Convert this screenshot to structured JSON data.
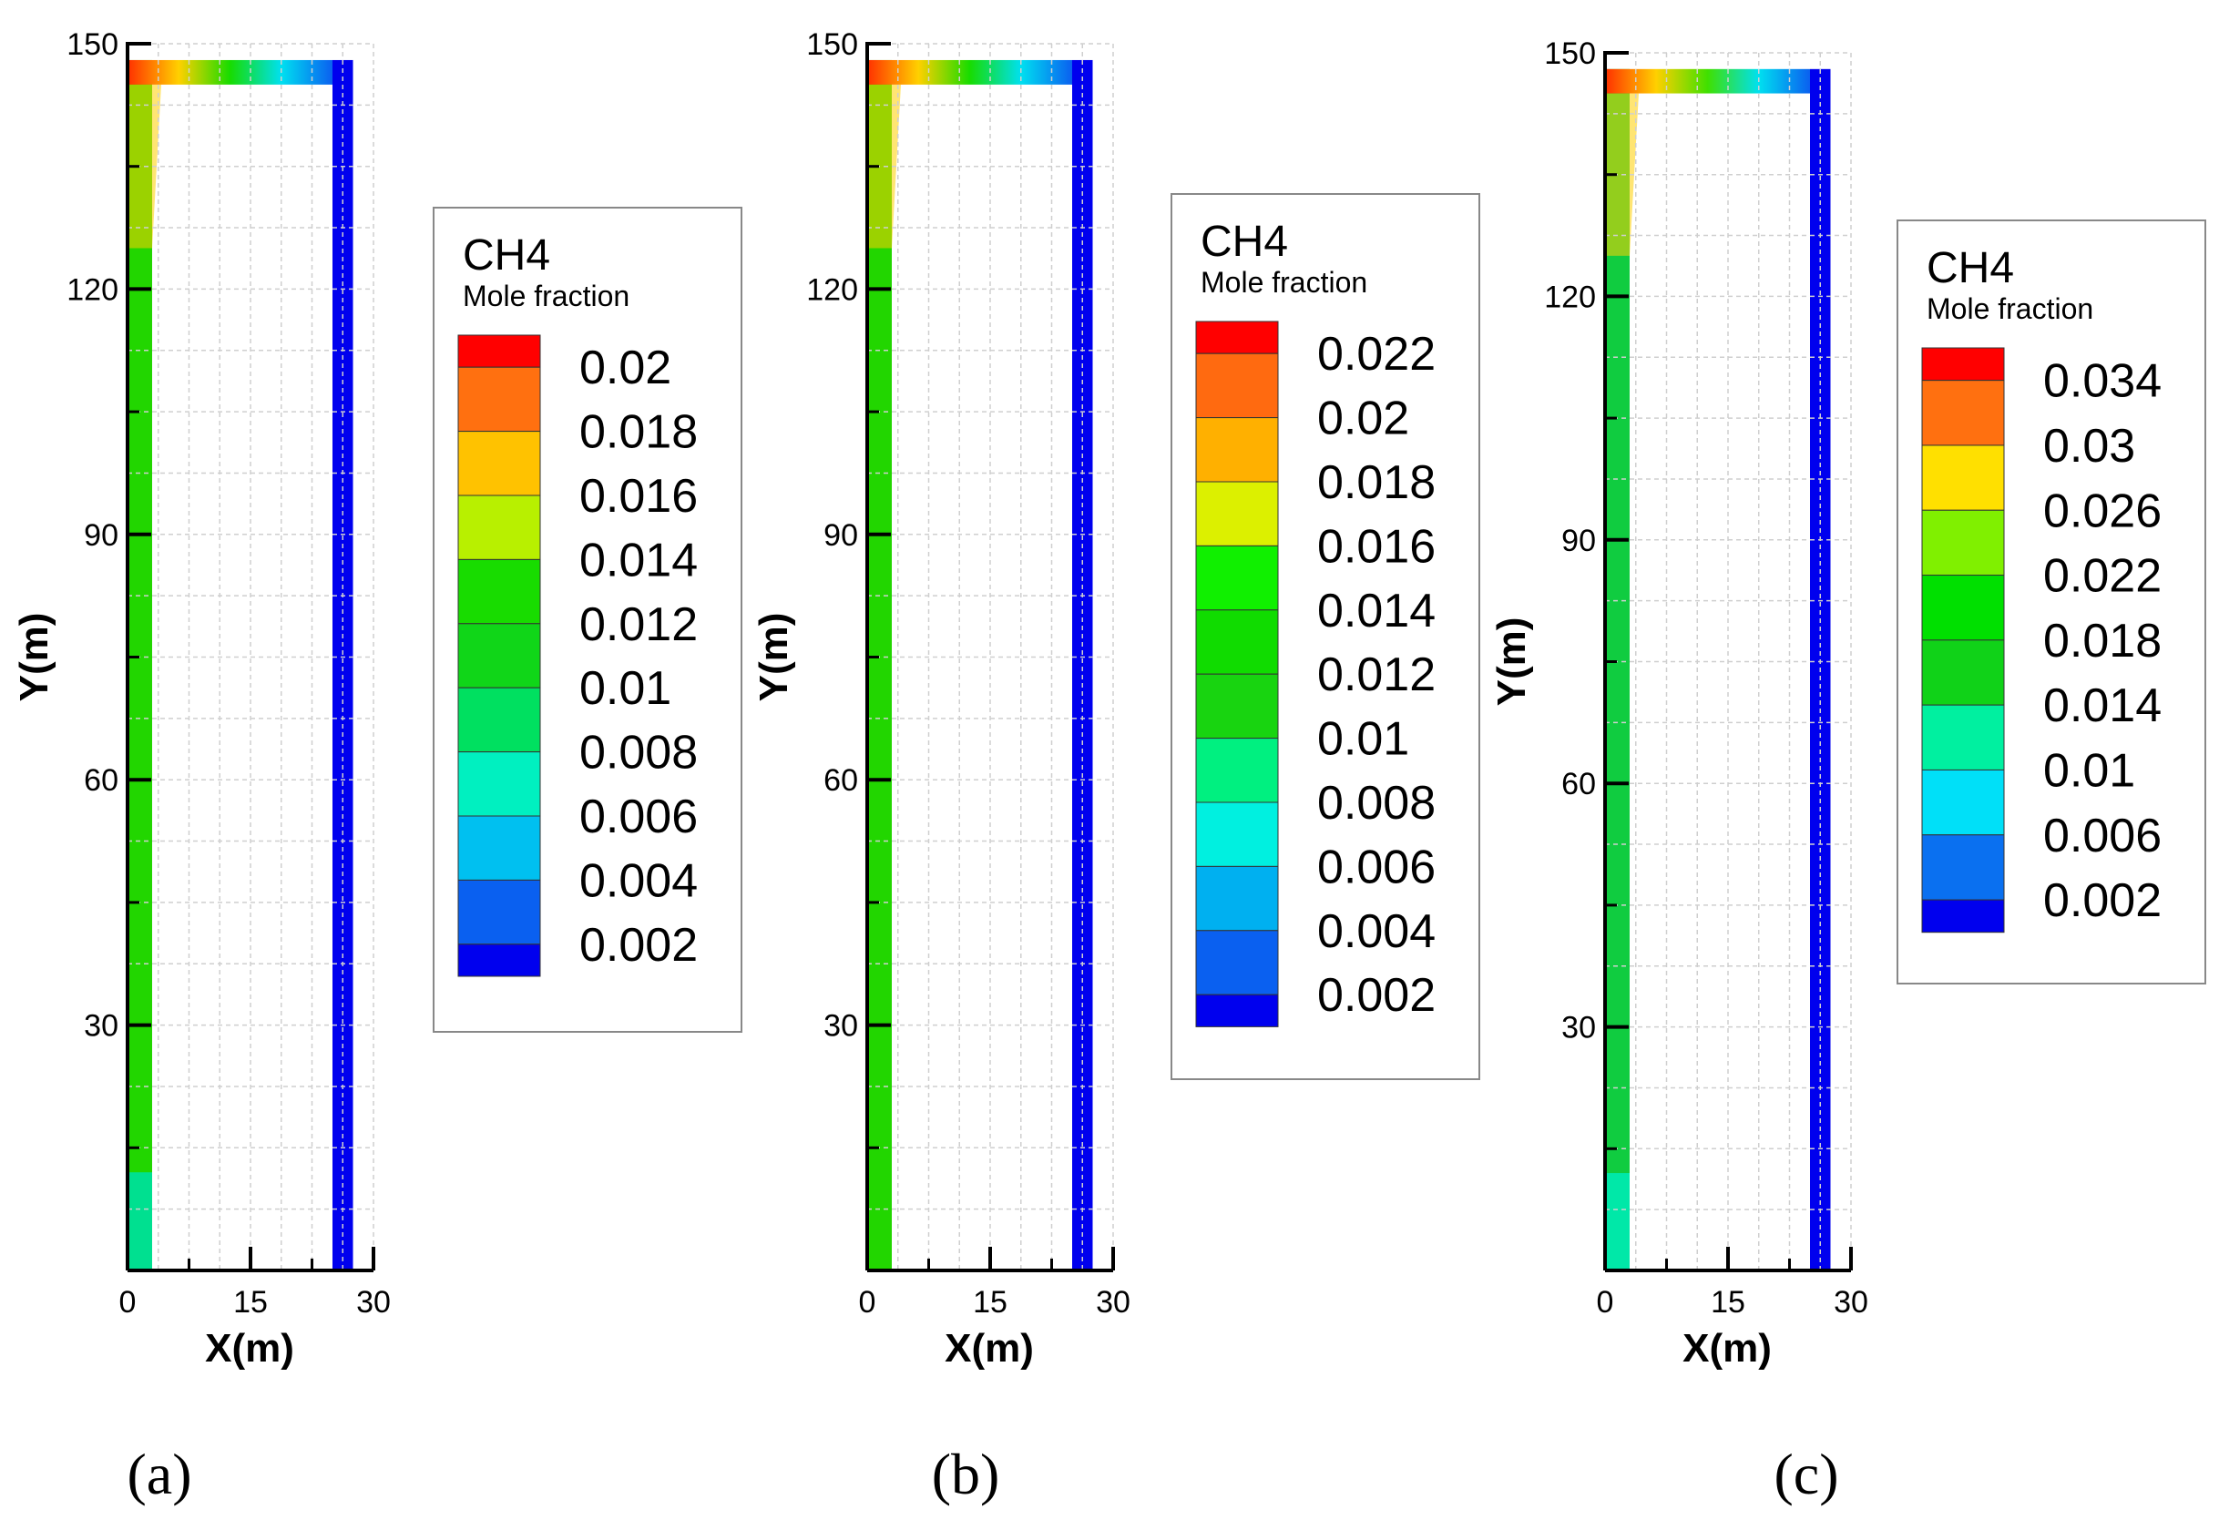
{
  "chart_data": [
    {
      "type": "heatmap",
      "panel_label": "(a)",
      "xlabel": "X(m)",
      "ylabel": "Y(m)",
      "xlim": [
        0,
        30
      ],
      "ylim": [
        0,
        150
      ],
      "xticks": [
        "0",
        "15",
        "30"
      ],
      "yticks": [
        "30",
        "60",
        "90",
        "120",
        "150"
      ],
      "grid": true,
      "legend": {
        "variable": "CH4",
        "subtitle": "Mole fraction",
        "levels": [
          "0.02",
          "0.018",
          "0.016",
          "0.014",
          "0.012",
          "0.01",
          "0.008",
          "0.006",
          "0.004",
          "0.002"
        ],
        "colors": [
          "#ff0000",
          "#ff7010",
          "#ffc200",
          "#b8f000",
          "#18dc00",
          "#10d618",
          "#00e060",
          "#00f0c0",
          "#00c0f0",
          "#0a60f0",
          "#0000ee"
        ]
      },
      "field": {
        "wall_x": [
          0,
          3
        ],
        "top_y": [
          145,
          148
        ],
        "outlet_x": [
          25,
          27.5
        ],
        "left_wall_color": "#22d600",
        "left_wall_bottom_color": "#00e090",
        "outlet_color": "#0000ee",
        "top_colors": [
          "#ff3000",
          "#ffd000",
          "#18dc00",
          "#00e0f0",
          "#0a60f0"
        ]
      }
    },
    {
      "type": "heatmap",
      "panel_label": "(b)",
      "xlabel": "X(m)",
      "ylabel": "Y(m)",
      "xlim": [
        0,
        30
      ],
      "ylim": [
        0,
        150
      ],
      "xticks": [
        "0",
        "15",
        "30"
      ],
      "yticks": [
        "30",
        "60",
        "90",
        "120",
        "150"
      ],
      "grid": true,
      "legend": {
        "variable": "CH4",
        "subtitle": "Mole fraction",
        "levels": [
          "0.022",
          "0.02",
          "0.018",
          "0.016",
          "0.014",
          "0.012",
          "0.01",
          "0.008",
          "0.006",
          "0.004",
          "0.002"
        ],
        "colors": [
          "#ff0000",
          "#ff6a10",
          "#ffb000",
          "#dcf000",
          "#10f000",
          "#10dc00",
          "#18d410",
          "#00f080",
          "#00f0e0",
          "#00b0f0",
          "#0a60f0",
          "#0000ee"
        ]
      },
      "field": {
        "wall_x": [
          0,
          3
        ],
        "top_y": [
          145,
          148
        ],
        "outlet_x": [
          25,
          27.5
        ],
        "left_wall_color": "#22d600",
        "left_wall_bottom_color": "#22d600",
        "outlet_color": "#0000ee",
        "top_colors": [
          "#ff3000",
          "#ffd000",
          "#18dc00",
          "#00e0f0",
          "#0a60f0"
        ]
      }
    },
    {
      "type": "heatmap",
      "panel_label": "(c)",
      "xlabel": "X(m)",
      "ylabel": "Y(m)",
      "xlim": [
        0,
        30
      ],
      "ylim": [
        0,
        150
      ],
      "xticks": [
        "0",
        "15",
        "30"
      ],
      "yticks": [
        "30",
        "60",
        "90",
        "120",
        "150"
      ],
      "grid": true,
      "legend": {
        "variable": "CH4",
        "subtitle": "Mole fraction",
        "levels": [
          "0.034",
          "0.03",
          "0.026",
          "0.022",
          "0.018",
          "0.014",
          "0.01",
          "0.006",
          "0.002"
        ],
        "colors": [
          "#ff0000",
          "#ff7010",
          "#ffe000",
          "#80f000",
          "#00e000",
          "#10d218",
          "#00f0a0",
          "#00e0f8",
          "#0a70f0",
          "#0000ee"
        ]
      },
      "field": {
        "wall_x": [
          0,
          3
        ],
        "top_y": [
          145,
          148
        ],
        "outlet_x": [
          25,
          27.5
        ],
        "left_wall_color": "#10cc40",
        "left_wall_bottom_color": "#00e8a8",
        "outlet_color": "#0000ee",
        "top_colors": [
          "#ff3000",
          "#ffd000",
          "#40e000",
          "#00e0f0",
          "#0a60f0"
        ]
      }
    }
  ]
}
